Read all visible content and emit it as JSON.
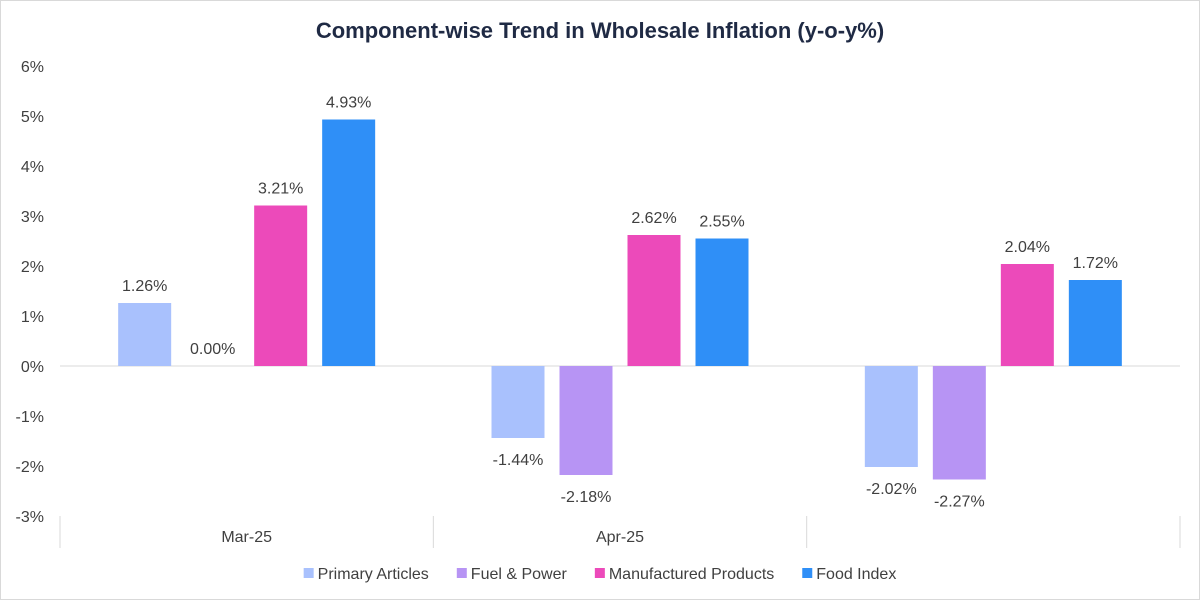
{
  "chart_data": {
    "type": "bar",
    "title": "Component-wise Trend in Wholesale Inflation (y-o-y%)",
    "categories": [
      "Mar-25",
      "Apr-25",
      ""
    ],
    "series": [
      {
        "name": "Primary Articles",
        "color": "#a9c1fd",
        "values": [
          1.26,
          -1.44,
          -2.02
        ],
        "labels": [
          "1.26%",
          "-1.44%",
          "-2.02%"
        ]
      },
      {
        "name": "Fuel & Power",
        "color": "#b794f4",
        "values": [
          0.0,
          -2.18,
          -2.27
        ],
        "labels": [
          "0.00%",
          "-2.18%",
          "-2.27%"
        ]
      },
      {
        "name": "Manufactured Products",
        "color": "#ec4aba",
        "values": [
          3.21,
          2.62,
          2.04
        ],
        "labels": [
          "3.21%",
          "2.62%",
          "2.04%"
        ]
      },
      {
        "name": "Food Index",
        "color": "#2f8ff7",
        "values": [
          4.93,
          2.55,
          1.72
        ],
        "labels": [
          "4.93%",
          "2.55%",
          "1.72%"
        ]
      }
    ],
    "yticks": [
      "6%",
      "5%",
      "4%",
      "3%",
      "2%",
      "1%",
      "0%",
      "-1%",
      "-2%",
      "-3%"
    ],
    "ylim": [
      -3,
      6
    ],
    "grid": false,
    "legend_position": "bottom"
  }
}
